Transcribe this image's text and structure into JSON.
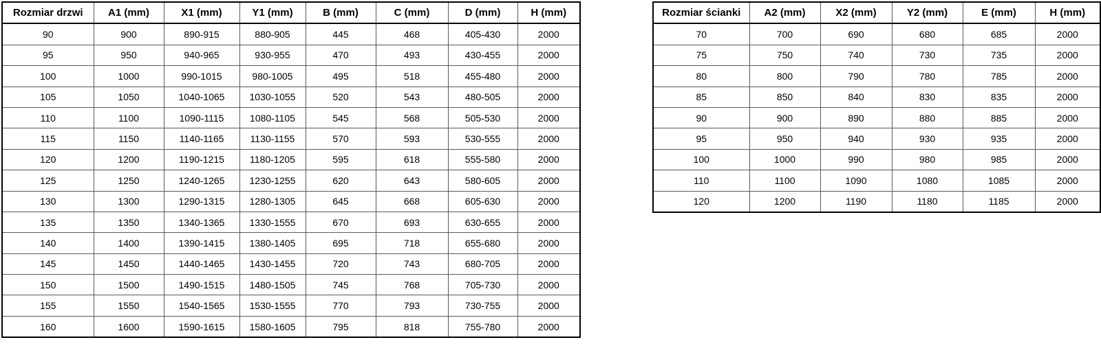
{
  "colors": {
    "background": "#ffffff",
    "text": "#000000",
    "border_outer": "#000000",
    "border_inner": "#595959"
  },
  "left_table": {
    "headers": [
      "Rozmiar drzwi",
      "A1 (mm)",
      "X1 (mm)",
      "Y1 (mm)",
      "B (mm)",
      "C (mm)",
      "D (mm)",
      "H (mm)"
    ],
    "rows": [
      [
        "90",
        "900",
        "890-915",
        "880-905",
        "445",
        "468",
        "405-430",
        "2000"
      ],
      [
        "95",
        "950",
        "940-965",
        "930-955",
        "470",
        "493",
        "430-455",
        "2000"
      ],
      [
        "100",
        "1000",
        "990-1015",
        "980-1005",
        "495",
        "518",
        "455-480",
        "2000"
      ],
      [
        "105",
        "1050",
        "1040-1065",
        "1030-1055",
        "520",
        "543",
        "480-505",
        "2000"
      ],
      [
        "110",
        "1100",
        "1090-1115",
        "1080-1105",
        "545",
        "568",
        "505-530",
        "2000"
      ],
      [
        "115",
        "1150",
        "1140-1165",
        "1130-1155",
        "570",
        "593",
        "530-555",
        "2000"
      ],
      [
        "120",
        "1200",
        "1190-1215",
        "1180-1205",
        "595",
        "618",
        "555-580",
        "2000"
      ],
      [
        "125",
        "1250",
        "1240-1265",
        "1230-1255",
        "620",
        "643",
        "580-605",
        "2000"
      ],
      [
        "130",
        "1300",
        "1290-1315",
        "1280-1305",
        "645",
        "668",
        "605-630",
        "2000"
      ],
      [
        "135",
        "1350",
        "1340-1365",
        "1330-1555",
        "670",
        "693",
        "630-655",
        "2000"
      ],
      [
        "140",
        "1400",
        "1390-1415",
        "1380-1405",
        "695",
        "718",
        "655-680",
        "2000"
      ],
      [
        "145",
        "1450",
        "1440-1465",
        "1430-1455",
        "720",
        "743",
        "680-705",
        "2000"
      ],
      [
        "150",
        "1500",
        "1490-1515",
        "1480-1505",
        "745",
        "768",
        "705-730",
        "2000"
      ],
      [
        "155",
        "1550",
        "1540-1565",
        "1530-1555",
        "770",
        "793",
        "730-755",
        "2000"
      ],
      [
        "160",
        "1600",
        "1590-1615",
        "1580-1605",
        "795",
        "818",
        "755-780",
        "2000"
      ]
    ]
  },
  "right_table": {
    "headers": [
      "Rozmiar ścianki",
      "A2 (mm)",
      "X2 (mm)",
      "Y2 (mm)",
      "E (mm)",
      "H (mm)"
    ],
    "rows": [
      [
        "70",
        "700",
        "690",
        "680",
        "685",
        "2000"
      ],
      [
        "75",
        "750",
        "740",
        "730",
        "735",
        "2000"
      ],
      [
        "80",
        "800",
        "790",
        "780",
        "785",
        "2000"
      ],
      [
        "85",
        "850",
        "840",
        "830",
        "835",
        "2000"
      ],
      [
        "90",
        "900",
        "890",
        "880",
        "885",
        "2000"
      ],
      [
        "95",
        "950",
        "940",
        "930",
        "935",
        "2000"
      ],
      [
        "100",
        "1000",
        "990",
        "980",
        "985",
        "2000"
      ],
      [
        "110",
        "1100",
        "1090",
        "1080",
        "1085",
        "2000"
      ],
      [
        "120",
        "1200",
        "1190",
        "1180",
        "1185",
        "2000"
      ]
    ]
  }
}
